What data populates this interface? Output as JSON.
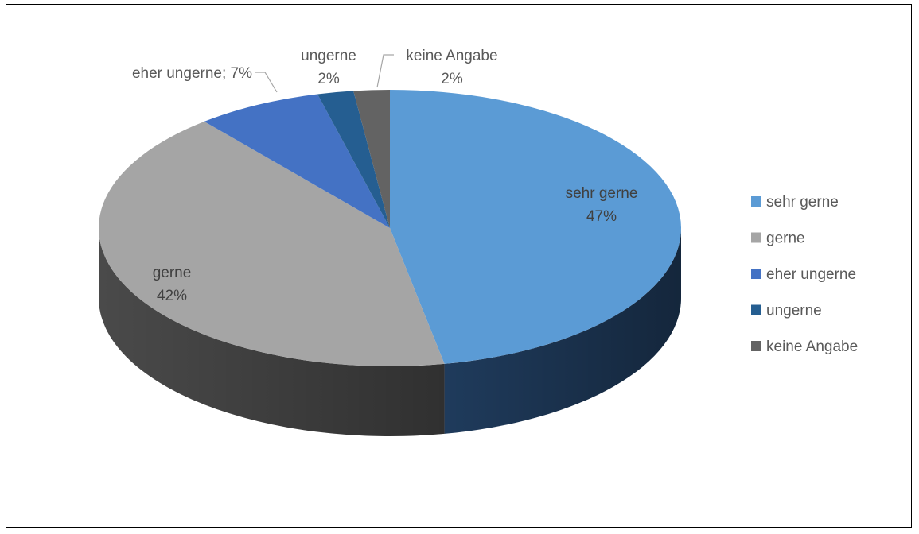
{
  "chart_data": {
    "type": "pie",
    "title": "",
    "categories": [
      "sehr gerne",
      "gerne",
      "eher ungerne",
      "ungerne",
      "keine Angabe"
    ],
    "values": [
      47,
      42,
      7,
      2,
      2
    ],
    "unit": "%",
    "data_labels": [
      {
        "name": "sehr gerne",
        "value": "47%"
      },
      {
        "name": "gerne",
        "value": "42%"
      },
      {
        "name": "eher ungerne",
        "value": "eher ungerne; 7%"
      },
      {
        "name": "ungerne",
        "value": "2%"
      },
      {
        "name": "keine Angabe",
        "value": "2%"
      }
    ],
    "colors": [
      "#5b9bd5",
      "#a5a5a5",
      "#4472c4",
      "#255e91",
      "#636363"
    ],
    "side_colors": [
      "#1f3b5c",
      "#4a4a4a",
      "#2a4a85",
      "#153a5a",
      "#3a3a3a"
    ],
    "legend": {
      "position": "right",
      "entries": [
        "sehr gerne",
        "gerne",
        "eher ungerne",
        "ungerne",
        "keine Angabe"
      ]
    },
    "style": "3d-pie"
  }
}
